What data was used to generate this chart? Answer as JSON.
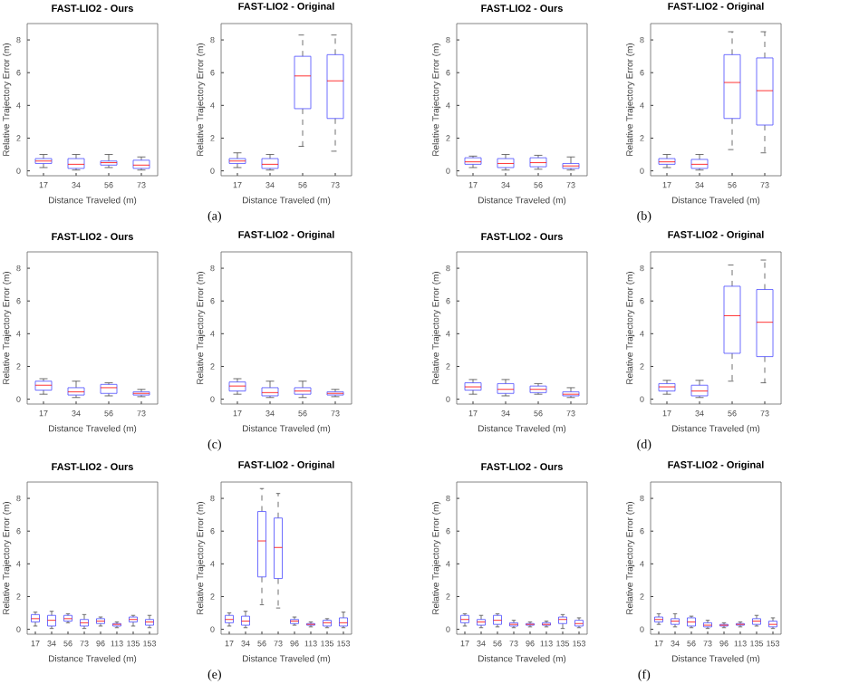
{
  "chart_data": [
    {
      "type": "box",
      "title": "FAST-LIO2 - Ours",
      "xlabel": "Distance Traveled (m)",
      "ylabel": "Relative Trajectory Error (m)",
      "categories": [
        "17",
        "34",
        "56",
        "73"
      ],
      "color": "#4a4aff",
      "ylim": [
        -0.3,
        9
      ],
      "yticks": [
        0,
        2,
        4,
        6,
        8
      ],
      "boxes": [
        {
          "low": 0.2,
          "q1": 0.45,
          "median": 0.6,
          "q3": 0.75,
          "high": 1.0
        },
        {
          "low": 0.05,
          "q1": 0.15,
          "median": 0.4,
          "q3": 0.75,
          "high": 1.0
        },
        {
          "low": 0.2,
          "q1": 0.35,
          "median": 0.5,
          "q3": 0.6,
          "high": 1.0
        },
        {
          "low": 0.05,
          "q1": 0.15,
          "median": 0.35,
          "q3": 0.65,
          "high": 0.85
        }
      ]
    },
    {
      "type": "box",
      "title": "FAST-LIO2 - Original",
      "xlabel": "Distance Traveled (m)",
      "ylabel": "Relative Trajectory Error (m)",
      "categories": [
        "17",
        "34",
        "56",
        "73"
      ],
      "color": "#4a4aff",
      "ylim": [
        -0.3,
        9
      ],
      "yticks": [
        0,
        2,
        4,
        6,
        8
      ],
      "annotations": [
        "(a)"
      ],
      "boxes": [
        {
          "low": 0.2,
          "q1": 0.45,
          "median": 0.6,
          "q3": 0.75,
          "high": 1.1
        },
        {
          "low": 0.05,
          "q1": 0.15,
          "median": 0.4,
          "q3": 0.75,
          "high": 1.0
        },
        {
          "low": 1.5,
          "q1": 3.8,
          "median": 5.8,
          "q3": 7.0,
          "high": 8.3
        },
        {
          "low": 1.2,
          "q1": 3.2,
          "median": 5.5,
          "q3": 7.1,
          "high": 8.3
        }
      ]
    },
    {
      "type": "box",
      "title": "FAST-LIO2 - Ours",
      "xlabel": "Distance Traveled (m)",
      "ylabel": "Relative Trajectory Error (m)",
      "categories": [
        "17",
        "34",
        "56",
        "73"
      ],
      "color": "#4a4aff",
      "ylim": [
        -0.3,
        9
      ],
      "yticks": [
        0,
        2,
        4,
        6,
        8
      ],
      "boxes": [
        {
          "low": 0.2,
          "q1": 0.4,
          "median": 0.55,
          "q3": 0.8,
          "high": 0.9
        },
        {
          "low": 0.05,
          "q1": 0.2,
          "median": 0.45,
          "q3": 0.75,
          "high": 1.0
        },
        {
          "low": 0.1,
          "q1": 0.25,
          "median": 0.5,
          "q3": 0.8,
          "high": 0.95
        },
        {
          "low": 0.05,
          "q1": 0.15,
          "median": 0.3,
          "q3": 0.45,
          "high": 0.85
        }
      ]
    },
    {
      "type": "box",
      "title": "FAST-LIO2 - Original",
      "xlabel": "Distance Traveled (m)",
      "ylabel": "Relative Trajectory Error (m)",
      "categories": [
        "17",
        "34",
        "56",
        "73"
      ],
      "color": "#4a4aff",
      "ylim": [
        -0.3,
        9
      ],
      "yticks": [
        0,
        2,
        4,
        6,
        8
      ],
      "annotations": [
        "(b)"
      ],
      "boxes": [
        {
          "low": 0.2,
          "q1": 0.4,
          "median": 0.55,
          "q3": 0.75,
          "high": 1.0
        },
        {
          "low": 0.05,
          "q1": 0.15,
          "median": 0.4,
          "q3": 0.7,
          "high": 1.0
        },
        {
          "low": 1.3,
          "q1": 3.2,
          "median": 5.4,
          "q3": 7.1,
          "high": 8.5
        },
        {
          "low": 1.1,
          "q1": 2.8,
          "median": 4.9,
          "q3": 6.9,
          "high": 8.5
        }
      ]
    },
    {
      "type": "box",
      "title": "FAST-LIO2 - Ours",
      "xlabel": "Distance Traveled (m)",
      "ylabel": "Relative Trajectory Error (m)",
      "categories": [
        "17",
        "34",
        "56",
        "73"
      ],
      "color": "#4a4aff",
      "ylim": [
        -0.3,
        9
      ],
      "yticks": [
        0,
        2,
        4,
        6,
        8
      ],
      "boxes": [
        {
          "low": 0.3,
          "q1": 0.55,
          "median": 0.85,
          "q3": 1.1,
          "high": 1.25
        },
        {
          "low": 0.1,
          "q1": 0.25,
          "median": 0.45,
          "q3": 0.7,
          "high": 1.1
        },
        {
          "low": 0.2,
          "q1": 0.35,
          "median": 0.7,
          "q3": 0.9,
          "high": 1.0
        },
        {
          "low": 0.15,
          "q1": 0.25,
          "median": 0.35,
          "q3": 0.45,
          "high": 0.6
        }
      ]
    },
    {
      "type": "box",
      "title": "FAST-LIO2 - Original",
      "xlabel": "Distance Traveled (m)",
      "ylabel": "Relative Trajectory Error (m)",
      "categories": [
        "17",
        "34",
        "56",
        "73"
      ],
      "color": "#4a4aff",
      "ylim": [
        -0.3,
        9
      ],
      "yticks": [
        0,
        2,
        4,
        6,
        8
      ],
      "annotations": [
        "(c)"
      ],
      "boxes": [
        {
          "low": 0.3,
          "q1": 0.5,
          "median": 0.8,
          "q3": 1.05,
          "high": 1.25
        },
        {
          "low": 0.1,
          "q1": 0.2,
          "median": 0.4,
          "q3": 0.7,
          "high": 1.1
        },
        {
          "low": 0.1,
          "q1": 0.3,
          "median": 0.5,
          "q3": 0.7,
          "high": 1.1
        },
        {
          "low": 0.15,
          "q1": 0.25,
          "median": 0.35,
          "q3": 0.45,
          "high": 0.6
        }
      ]
    },
    {
      "type": "box",
      "title": "FAST-LIO2 - Ours",
      "xlabel": "Distance Traveled (m)",
      "ylabel": "Relative Trajectory Error (m)",
      "categories": [
        "17",
        "34",
        "56",
        "73"
      ],
      "color": "#4a4aff",
      "ylim": [
        -0.3,
        9
      ],
      "yticks": [
        0,
        2,
        4,
        6,
        8
      ],
      "boxes": [
        {
          "low": 0.3,
          "q1": 0.55,
          "median": 0.75,
          "q3": 1.0,
          "high": 1.2
        },
        {
          "low": 0.2,
          "q1": 0.35,
          "median": 0.6,
          "q3": 0.95,
          "high": 1.2
        },
        {
          "low": 0.3,
          "q1": 0.4,
          "median": 0.6,
          "q3": 0.8,
          "high": 0.95
        },
        {
          "low": 0.1,
          "q1": 0.2,
          "median": 0.3,
          "q3": 0.45,
          "high": 0.7
        }
      ]
    },
    {
      "type": "box",
      "title": "FAST-LIO2 - Original",
      "xlabel": "Distance Traveled (m)",
      "ylabel": "Relative Trajectory Error (m)",
      "categories": [
        "17",
        "34",
        "56",
        "73"
      ],
      "color": "#4a4aff",
      "ylim": [
        -0.3,
        9
      ],
      "yticks": [
        0,
        2,
        4,
        6,
        8
      ],
      "annotations": [
        "(d)"
      ],
      "boxes": [
        {
          "low": 0.3,
          "q1": 0.5,
          "median": 0.75,
          "q3": 0.95,
          "high": 1.15
        },
        {
          "low": 0.1,
          "q1": 0.2,
          "median": 0.5,
          "q3": 0.85,
          "high": 1.15
        },
        {
          "low": 1.1,
          "q1": 2.8,
          "median": 5.1,
          "q3": 6.9,
          "high": 8.2
        },
        {
          "low": 1.0,
          "q1": 2.6,
          "median": 4.7,
          "q3": 6.7,
          "high": 8.5
        }
      ]
    },
    {
      "type": "box",
      "title": "FAST-LIO2 - Ours",
      "xlabel": "Distance Traveled (m)",
      "ylabel": "Relative Trajectory Error (m)",
      "categories": [
        "17",
        "34",
        "56",
        "73",
        "96",
        "113",
        "135",
        "153"
      ],
      "color": "#4a4aff",
      "ylim": [
        -0.3,
        9
      ],
      "yticks": [
        0,
        2,
        4,
        6,
        8
      ],
      "boxes": [
        {
          "low": 0.2,
          "q1": 0.45,
          "median": 0.65,
          "q3": 0.9,
          "high": 1.05
        },
        {
          "low": 0.05,
          "q1": 0.2,
          "median": 0.55,
          "q3": 0.85,
          "high": 1.1
        },
        {
          "low": 0.4,
          "q1": 0.5,
          "median": 0.65,
          "q3": 0.85,
          "high": 0.95
        },
        {
          "low": 0.05,
          "q1": 0.2,
          "median": 0.4,
          "q3": 0.6,
          "high": 0.9
        },
        {
          "low": 0.2,
          "q1": 0.35,
          "median": 0.5,
          "q3": 0.65,
          "high": 0.75
        },
        {
          "low": 0.1,
          "q1": 0.2,
          "median": 0.3,
          "q3": 0.35,
          "high": 0.45
        },
        {
          "low": 0.2,
          "q1": 0.45,
          "median": 0.6,
          "q3": 0.75,
          "high": 0.85
        },
        {
          "low": 0.1,
          "q1": 0.25,
          "median": 0.45,
          "q3": 0.6,
          "high": 0.85
        }
      ]
    },
    {
      "type": "box",
      "title": "FAST-LIO2 - Original",
      "xlabel": "Distance Traveled (m)",
      "ylabel": "Relative Trajectory Error (m)",
      "categories": [
        "17",
        "34",
        "56",
        "73",
        "96",
        "113",
        "135",
        "153"
      ],
      "color": "#4a4aff",
      "ylim": [
        -0.3,
        9
      ],
      "yticks": [
        0,
        2,
        4,
        6,
        8
      ],
      "annotations": [
        "(e)"
      ],
      "boxes": [
        {
          "low": 0.2,
          "q1": 0.4,
          "median": 0.6,
          "q3": 0.85,
          "high": 1.0
        },
        {
          "low": 0.1,
          "q1": 0.25,
          "median": 0.5,
          "q3": 0.8,
          "high": 1.1
        },
        {
          "low": 1.5,
          "q1": 3.2,
          "median": 5.4,
          "q3": 7.2,
          "high": 8.6
        },
        {
          "low": 1.3,
          "q1": 3.1,
          "median": 5.0,
          "q3": 6.8,
          "high": 8.3
        },
        {
          "low": 0.25,
          "q1": 0.35,
          "median": 0.5,
          "q3": 0.6,
          "high": 0.75
        },
        {
          "low": 0.15,
          "q1": 0.25,
          "median": 0.3,
          "q3": 0.35,
          "high": 0.45
        },
        {
          "low": 0.1,
          "q1": 0.2,
          "median": 0.4,
          "q3": 0.55,
          "high": 0.65
        },
        {
          "low": 0.1,
          "q1": 0.2,
          "median": 0.4,
          "q3": 0.7,
          "high": 1.05
        }
      ]
    },
    {
      "type": "box",
      "title": "FAST-LIO2 - Ours",
      "xlabel": "Distance Traveled (m)",
      "ylabel": "Relative Trajectory Error (m)",
      "categories": [
        "17",
        "34",
        "56",
        "73",
        "96",
        "113",
        "135",
        "153"
      ],
      "color": "#4a4aff",
      "ylim": [
        -0.3,
        9
      ],
      "yticks": [
        0,
        2,
        4,
        6,
        8
      ],
      "boxes": [
        {
          "low": 0.2,
          "q1": 0.4,
          "median": 0.6,
          "q3": 0.85,
          "high": 0.95
        },
        {
          "low": 0.1,
          "q1": 0.25,
          "median": 0.45,
          "q3": 0.6,
          "high": 0.85
        },
        {
          "low": 0.15,
          "q1": 0.3,
          "median": 0.55,
          "q3": 0.85,
          "high": 0.95
        },
        {
          "low": 0.1,
          "q1": 0.2,
          "median": 0.3,
          "q3": 0.4,
          "high": 0.55
        },
        {
          "low": 0.15,
          "q1": 0.25,
          "median": 0.3,
          "q3": 0.35,
          "high": 0.45
        },
        {
          "low": 0.15,
          "q1": 0.25,
          "median": 0.3,
          "q3": 0.4,
          "high": 0.5
        },
        {
          "low": 0.05,
          "q1": 0.35,
          "median": 0.6,
          "q3": 0.75,
          "high": 0.9
        },
        {
          "low": 0.1,
          "q1": 0.2,
          "median": 0.35,
          "q3": 0.55,
          "high": 0.7
        }
      ]
    },
    {
      "type": "box",
      "title": "FAST-LIO2 - Original",
      "xlabel": "Distance Traveled (m)",
      "ylabel": "Relative Trajectory Error (m)",
      "categories": [
        "17",
        "34",
        "56",
        "73",
        "96",
        "113",
        "135",
        "153"
      ],
      "color": "#4a4aff",
      "ylim": [
        -0.3,
        9
      ],
      "yticks": [
        0,
        2,
        4,
        6,
        8
      ],
      "annotations": [
        "(f)"
      ],
      "boxes": [
        {
          "low": 0.3,
          "q1": 0.45,
          "median": 0.6,
          "q3": 0.75,
          "high": 0.95
        },
        {
          "low": 0.15,
          "q1": 0.3,
          "median": 0.5,
          "q3": 0.65,
          "high": 0.95
        },
        {
          "low": 0.1,
          "q1": 0.2,
          "median": 0.45,
          "q3": 0.7,
          "high": 0.8
        },
        {
          "low": 0.05,
          "q1": 0.15,
          "median": 0.25,
          "q3": 0.4,
          "high": 0.55
        },
        {
          "low": 0.1,
          "q1": 0.2,
          "median": 0.25,
          "q3": 0.3,
          "high": 0.4
        },
        {
          "low": 0.15,
          "q1": 0.25,
          "median": 0.3,
          "q3": 0.35,
          "high": 0.45
        },
        {
          "low": 0.2,
          "q1": 0.3,
          "median": 0.5,
          "q3": 0.65,
          "high": 0.85
        },
        {
          "low": 0.05,
          "q1": 0.15,
          "median": 0.3,
          "q3": 0.5,
          "high": 0.7
        }
      ]
    }
  ]
}
